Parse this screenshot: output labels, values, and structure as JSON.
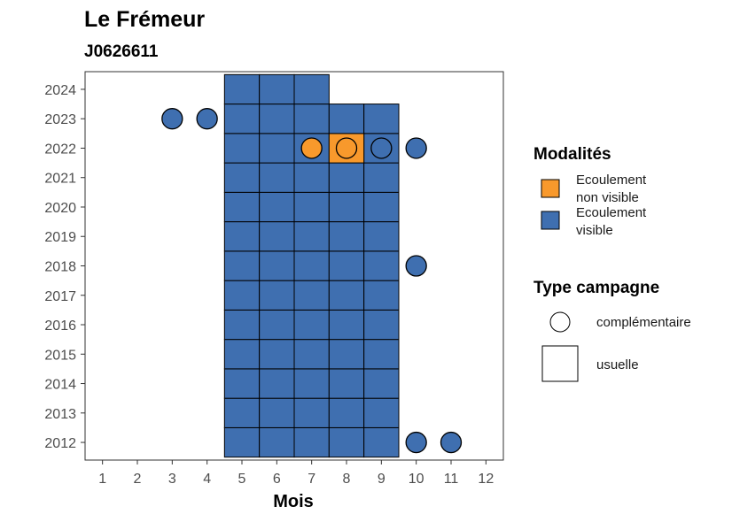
{
  "chart_data": {
    "type": "heatmap",
    "title": "Le Frémeur",
    "subtitle": "J0626611",
    "xlabel": "Mois",
    "ylabel": "",
    "x_ticks": [
      1,
      2,
      3,
      4,
      5,
      6,
      7,
      8,
      9,
      10,
      11,
      12
    ],
    "y_ticks": [
      2012,
      2013,
      2014,
      2015,
      2016,
      2017,
      2018,
      2019,
      2020,
      2021,
      2022,
      2023,
      2024
    ],
    "xlim": [
      0.5,
      12.5
    ],
    "ylim": [
      2011.4,
      2024.6
    ],
    "grid": false,
    "legend_position": "right",
    "modalites": [
      {
        "key": "non_visible",
        "label_line1": "Ecoulement",
        "label_line2": "non visible",
        "color": "#F8992C"
      },
      {
        "key": "visible",
        "label_line1": "Ecoulement",
        "label_line2": "visible",
        "color": "#3F6FB0"
      }
    ],
    "campaign_types": [
      {
        "key": "complementaire",
        "label": "complémentaire",
        "shape": "circle"
      },
      {
        "key": "usuelle",
        "label": "usuelle",
        "shape": "square"
      }
    ],
    "legend_titles": {
      "modalites": "Modalités",
      "campaign": "Type campagne"
    },
    "usuelle_points": [
      {
        "year": 2012,
        "months": [
          5,
          6,
          7,
          8,
          9
        ],
        "value": "visible"
      },
      {
        "year": 2013,
        "months": [
          5,
          6,
          7,
          8,
          9
        ],
        "value": "visible"
      },
      {
        "year": 2014,
        "months": [
          5,
          6,
          7,
          8,
          9
        ],
        "value": "visible"
      },
      {
        "year": 2015,
        "months": [
          5,
          6,
          7,
          8,
          9
        ],
        "value": "visible"
      },
      {
        "year": 2016,
        "months": [
          5,
          6,
          7,
          8,
          9
        ],
        "value": "visible"
      },
      {
        "year": 2017,
        "months": [
          5,
          6,
          7,
          8,
          9
        ],
        "value": "visible"
      },
      {
        "year": 2018,
        "months": [
          5,
          6,
          7,
          8,
          9
        ],
        "value": "visible"
      },
      {
        "year": 2019,
        "months": [
          5,
          6,
          7,
          8,
          9
        ],
        "value": "visible"
      },
      {
        "year": 2020,
        "months": [
          5,
          6,
          7,
          8,
          9
        ],
        "value": "visible"
      },
      {
        "year": 2021,
        "months": [
          5,
          6,
          7,
          8,
          9
        ],
        "value": "visible"
      },
      {
        "year": 2022,
        "months": [
          5,
          6,
          7,
          9
        ],
        "value": "visible"
      },
      {
        "year": 2022,
        "months": [
          8
        ],
        "value": "non_visible"
      },
      {
        "year": 2023,
        "months": [
          5,
          6,
          7,
          8,
          9
        ],
        "value": "visible"
      },
      {
        "year": 2024,
        "months": [
          5,
          6,
          7
        ],
        "value": "visible"
      }
    ],
    "complementaire_points": [
      {
        "year": 2023,
        "month": 3,
        "value": "visible"
      },
      {
        "year": 2023,
        "month": 4,
        "value": "visible"
      },
      {
        "year": 2022,
        "month": 7,
        "value": "non_visible"
      },
      {
        "year": 2022,
        "month": 8,
        "value": "non_visible"
      },
      {
        "year": 2022,
        "month": 9,
        "value": "visible"
      },
      {
        "year": 2022,
        "month": 10,
        "value": "visible"
      },
      {
        "year": 2018,
        "month": 10,
        "value": "visible"
      },
      {
        "year": 2012,
        "month": 10,
        "value": "visible"
      },
      {
        "year": 2012,
        "month": 11,
        "value": "visible"
      }
    ]
  }
}
